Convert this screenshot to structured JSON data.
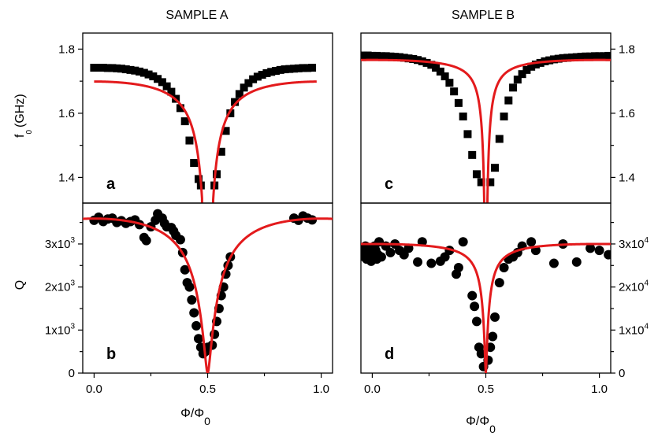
{
  "titles": {
    "left": "SAMPLE A",
    "right": "SAMPLE B"
  },
  "axes": {
    "f0_label_main": "f",
    "f0_label_sub": "0",
    "f0_label_unit": "(GHz)",
    "q_label": "Q",
    "x_label_main": "Φ/Φ",
    "x_label_sub": "0"
  },
  "colors": {
    "fit": "#e31a1c",
    "points": "#000000",
    "frame": "#000000"
  },
  "chart_data": [
    {
      "id": "a",
      "panel_letter": "a",
      "type": "scatter",
      "title": "SAMPLE A",
      "ylabel": "f0 (GHz)",
      "xlim": [
        -0.05,
        1.05
      ],
      "ylim": [
        1.32,
        1.85
      ],
      "yticks": [
        1.4,
        1.6,
        1.8
      ],
      "yticklabels": [
        "1.4",
        "1.6",
        "1.8"
      ],
      "marker": "square",
      "series": [
        {
          "style": "points",
          "x": [
            0,
            0.02,
            0.04,
            0.06,
            0.08,
            0.1,
            0.12,
            0.14,
            0.16,
            0.18,
            0.2,
            0.22,
            0.24,
            0.26,
            0.28,
            0.3,
            0.32,
            0.34,
            0.36,
            0.38,
            0.4,
            0.42,
            0.44,
            0.46,
            0.47,
            0.53,
            0.54,
            0.56,
            0.58,
            0.6,
            0.62,
            0.64,
            0.66,
            0.68,
            0.7,
            0.72,
            0.74,
            0.76,
            0.78,
            0.8,
            0.82,
            0.84,
            0.86,
            0.88,
            0.9,
            0.92,
            0.94,
            0.96
          ],
          "y": [
            1.742,
            1.742,
            1.742,
            1.741,
            1.741,
            1.74,
            1.739,
            1.737,
            1.735,
            1.733,
            1.73,
            1.726,
            1.721,
            1.715,
            1.707,
            1.697,
            1.684,
            1.667,
            1.645,
            1.616,
            1.575,
            1.515,
            1.445,
            1.395,
            1.375,
            1.375,
            1.41,
            1.48,
            1.545,
            1.6,
            1.635,
            1.66,
            1.68,
            1.694,
            1.706,
            1.714,
            1.72,
            1.725,
            1.729,
            1.732,
            1.735,
            1.737,
            1.738,
            1.739,
            1.74,
            1.741,
            1.741,
            1.742
          ]
        },
        {
          "style": "fit",
          "model": "f0",
          "params": {
            "fmax": 1.745,
            "lr": 0.055
          },
          "xrange": [
            0,
            0.98
          ]
        }
      ]
    },
    {
      "id": "b",
      "panel_letter": "b",
      "type": "scatter",
      "ylabel": "Q",
      "xlabel": "Φ/Φ0",
      "xlim": [
        -0.05,
        1.05
      ],
      "ylim": [
        0,
        3950
      ],
      "yticks": [
        0,
        1000,
        2000,
        3000
      ],
      "yticklabels": [
        "0",
        "1x10^3",
        "2x10^3",
        "3x10^3"
      ],
      "xticks": [
        0,
        0.5,
        1.0
      ],
      "xticklabels": [
        "0.0",
        "0.5",
        "1.0"
      ],
      "marker": "circle",
      "series": [
        {
          "style": "points",
          "x": [
            0,
            0.02,
            0.04,
            0.06,
            0.08,
            0.1,
            0.12,
            0.14,
            0.16,
            0.18,
            0.2,
            0.22,
            0.23,
            0.25,
            0.27,
            0.28,
            0.3,
            0.31,
            0.32,
            0.34,
            0.35,
            0.36,
            0.38,
            0.39,
            0.4,
            0.41,
            0.42,
            0.43,
            0.44,
            0.45,
            0.46,
            0.47,
            0.48,
            0.49,
            0.5,
            0.52,
            0.53,
            0.54,
            0.55,
            0.56,
            0.57,
            0.58,
            0.59,
            0.6,
            0.88,
            0.9,
            0.92,
            0.94,
            0.96
          ],
          "y": [
            3550,
            3620,
            3520,
            3580,
            3600,
            3500,
            3540,
            3480,
            3520,
            3560,
            3450,
            3150,
            3080,
            3400,
            3550,
            3700,
            3600,
            3480,
            3400,
            3380,
            3300,
            3200,
            3100,
            2800,
            2400,
            2100,
            2000,
            1700,
            1400,
            1100,
            800,
            600,
            450,
            500,
            600,
            650,
            900,
            1200,
            1500,
            1800,
            2000,
            2300,
            2500,
            2700,
            3600,
            3550,
            3650,
            3600,
            3560
          ],
          "marker": "circle"
        },
        {
          "style": "fit",
          "model": "q",
          "params": {
            "qmax": 3590,
            "lr": 0.075
          },
          "xrange": [
            -0.05,
            1.05
          ]
        }
      ]
    },
    {
      "id": "c",
      "panel_letter": "c",
      "type": "scatter",
      "xlim": [
        -0.05,
        1.05
      ],
      "ylim": [
        1.32,
        1.85
      ],
      "yticks": [
        1.4,
        1.6,
        1.8
      ],
      "yticklabels": [
        "1.4",
        "1.6",
        "1.8"
      ],
      "marker": "square",
      "series": [
        {
          "style": "points",
          "x": [
            -0.04,
            -0.02,
            0,
            0.02,
            0.04,
            0.06,
            0.08,
            0.1,
            0.12,
            0.14,
            0.16,
            0.18,
            0.2,
            0.22,
            0.24,
            0.26,
            0.28,
            0.3,
            0.32,
            0.34,
            0.36,
            0.38,
            0.4,
            0.42,
            0.44,
            0.46,
            0.48,
            0.52,
            0.54,
            0.56,
            0.58,
            0.6,
            0.62,
            0.64,
            0.66,
            0.68,
            0.7,
            0.72,
            0.74,
            0.76,
            0.78,
            0.8,
            0.82,
            0.84,
            0.86,
            0.88,
            0.9,
            0.92,
            0.94,
            0.96,
            0.98,
            1.0,
            1.02,
            1.04
          ],
          "y": [
            1.78,
            1.78,
            1.779,
            1.779,
            1.778,
            1.778,
            1.777,
            1.776,
            1.775,
            1.773,
            1.771,
            1.769,
            1.766,
            1.762,
            1.757,
            1.751,
            1.742,
            1.73,
            1.715,
            1.695,
            1.668,
            1.632,
            1.59,
            1.535,
            1.47,
            1.41,
            1.385,
            1.385,
            1.43,
            1.52,
            1.59,
            1.64,
            1.68,
            1.705,
            1.722,
            1.735,
            1.745,
            1.752,
            1.757,
            1.762,
            1.765,
            1.768,
            1.77,
            1.772,
            1.773,
            1.774,
            1.775,
            1.776,
            1.777,
            1.777,
            1.778,
            1.778,
            1.778,
            1.779
          ]
        },
        {
          "style": "fit",
          "model": "f0",
          "params": {
            "fmax": 1.782,
            "lr": 0.018
          },
          "xrange": [
            -0.05,
            1.05
          ]
        }
      ]
    },
    {
      "id": "d",
      "panel_letter": "d",
      "type": "scatter",
      "xlim": [
        -0.05,
        1.05
      ],
      "ylim": [
        0,
        39500
      ],
      "yticks": [
        0,
        10000,
        20000,
        30000
      ],
      "yticklabels": [
        "0",
        "1x10^4",
        "2x10^4",
        "3x10^4"
      ],
      "xticks": [
        0,
        0.5,
        1.0
      ],
      "xticklabels": [
        "0.0",
        "0.5",
        "1.0"
      ],
      "marker": "circle",
      "series": [
        {
          "style": "points",
          "x": [
            -0.04,
            -0.035,
            -0.03,
            -0.025,
            -0.02,
            -0.015,
            -0.01,
            -0.005,
            0,
            0.005,
            0.01,
            0.015,
            0.02,
            0.025,
            0.03,
            0.04,
            0.06,
            0.08,
            0.1,
            0.12,
            0.14,
            0.16,
            0.2,
            0.22,
            0.26,
            0.3,
            0.32,
            0.34,
            0.37,
            0.38,
            0.4,
            0.44,
            0.45,
            0.46,
            0.47,
            0.48,
            0.49,
            0.51,
            0.52,
            0.53,
            0.54,
            0.56,
            0.58,
            0.6,
            0.62,
            0.64,
            0.66,
            0.7,
            0.72,
            0.8,
            0.84,
            0.9,
            0.96,
            1.0,
            1.04
          ],
          "y": [
            28000,
            27000,
            29500,
            26500,
            28500,
            27500,
            29000,
            26000,
            28000,
            27000,
            29500,
            28500,
            26500,
            27500,
            30500,
            27000,
            29500,
            28000,
            30000,
            28500,
            27500,
            29000,
            25800,
            30500,
            25500,
            26000,
            27000,
            28500,
            23000,
            24500,
            30500,
            18000,
            15500,
            12000,
            6000,
            4500,
            1500,
            3000,
            6000,
            8500,
            13000,
            21000,
            24500,
            26500,
            27000,
            28000,
            29500,
            30500,
            28500,
            25500,
            30000,
            25800,
            29000,
            28500,
            27500
          ]
        },
        {
          "style": "fit",
          "model": "q",
          "params": {
            "qmax": 30000,
            "lr": 0.02
          },
          "xrange": [
            -0.05,
            1.05
          ]
        }
      ]
    }
  ]
}
